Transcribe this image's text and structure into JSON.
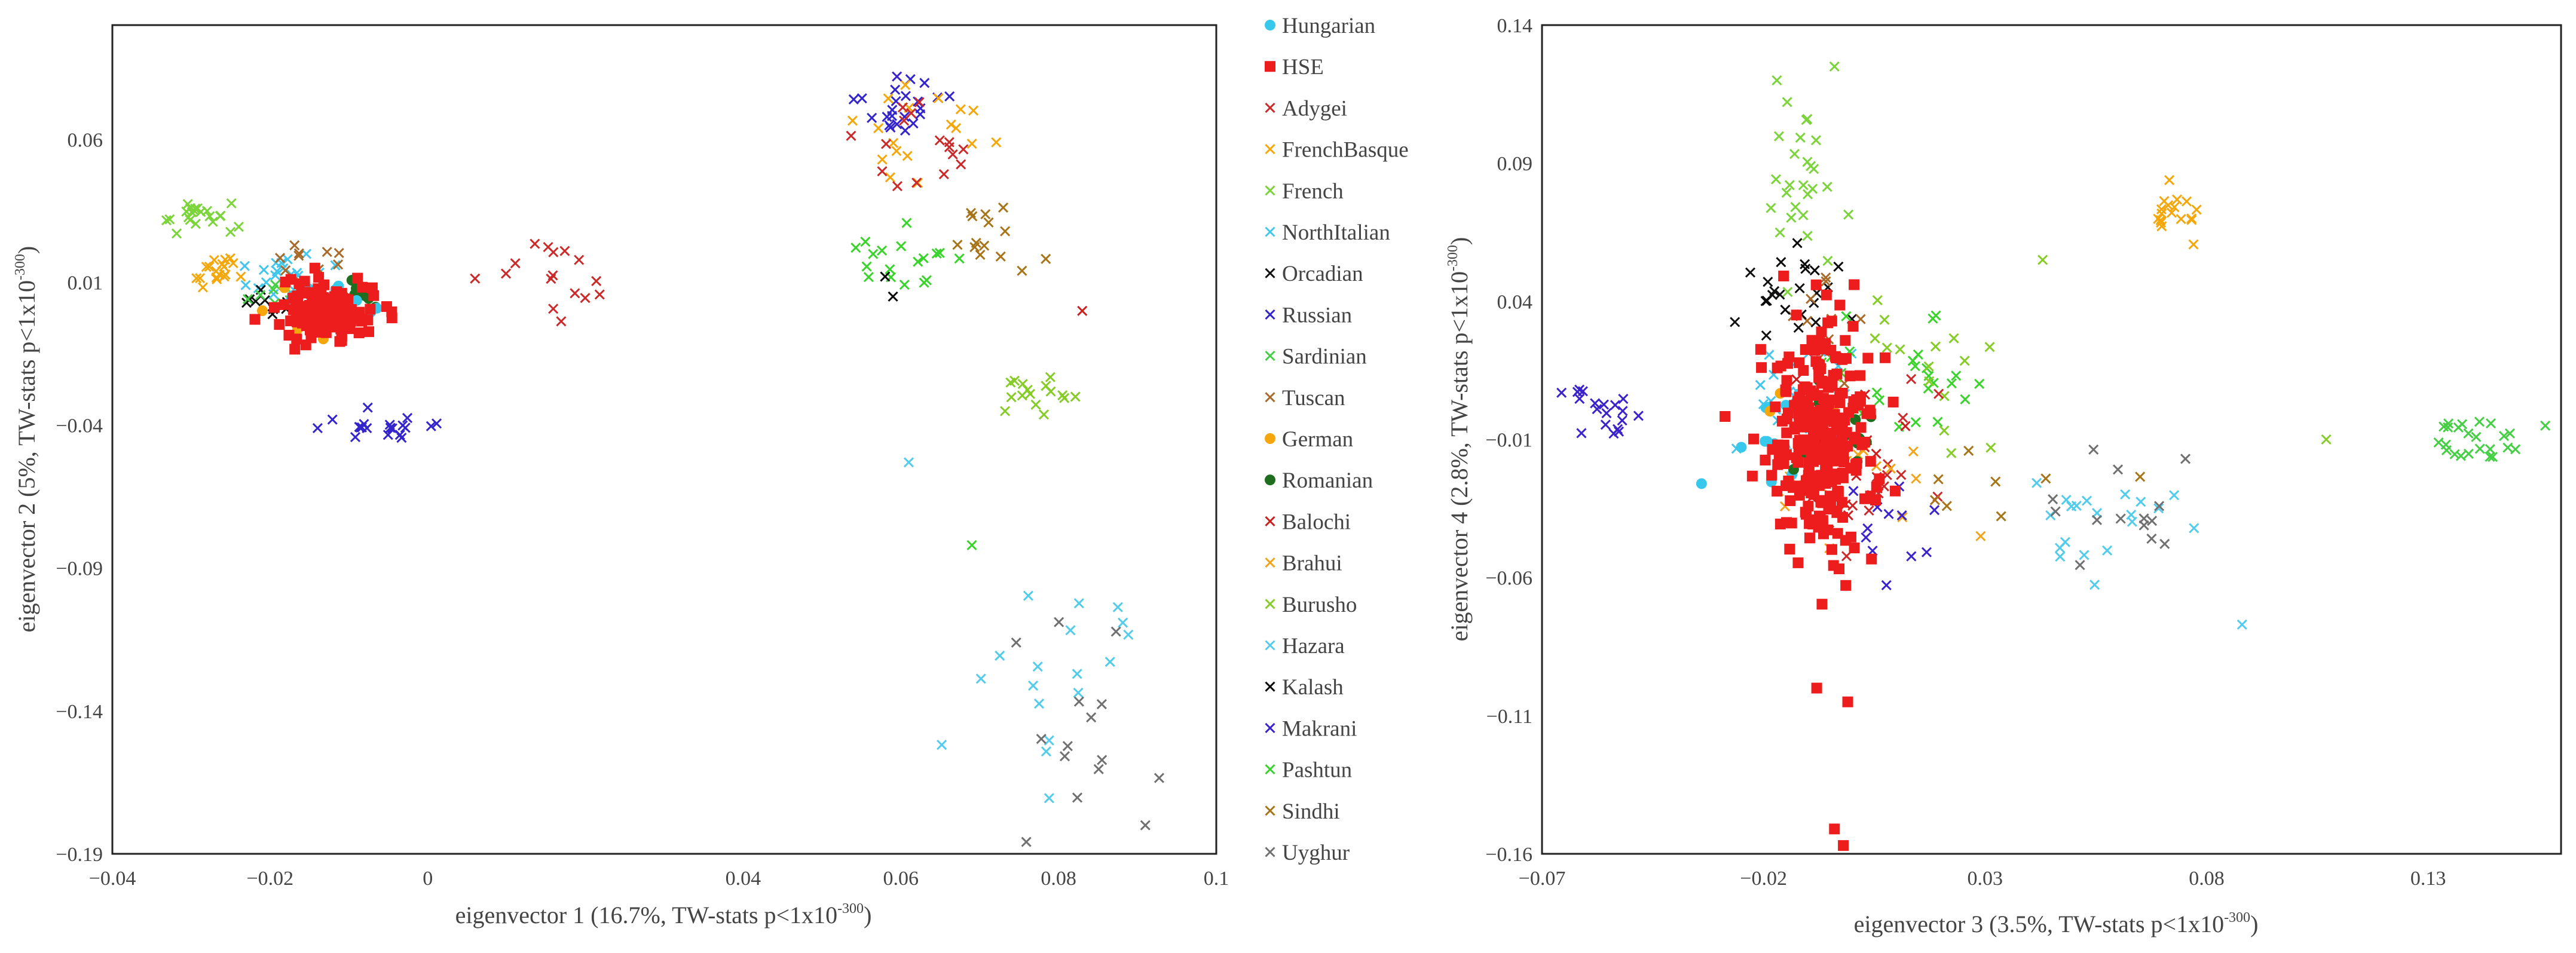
{
  "legend": {
    "items": [
      {
        "name": "Hungarian",
        "marker": "circle",
        "color": "#38c8ec"
      },
      {
        "name": "HSE",
        "marker": "square",
        "color": "#ee1d1d"
      },
      {
        "name": "Adygei",
        "marker": "x",
        "color": "#cc2a2a"
      },
      {
        "name": "FrenchBasque",
        "marker": "x",
        "color": "#f5a70a"
      },
      {
        "name": "French",
        "marker": "x",
        "color": "#7ad43a"
      },
      {
        "name": "NorthItalian",
        "marker": "x",
        "color": "#41c6ee"
      },
      {
        "name": "Orcadian",
        "marker": "x",
        "color": "#111111"
      },
      {
        "name": "Russian",
        "marker": "x",
        "color": "#3324cc"
      },
      {
        "name": "Sardinian",
        "marker": "x",
        "color": "#44cf44"
      },
      {
        "name": "Tuscan",
        "marker": "x",
        "color": "#a86a2a"
      },
      {
        "name": "German",
        "marker": "circle",
        "color": "#f5a60a"
      },
      {
        "name": "Romanian",
        "marker": "circle",
        "color": "#1f6e1f"
      },
      {
        "name": "Balochi",
        "marker": "x",
        "color": "#cc1e1e"
      },
      {
        "name": "Brahui",
        "marker": "x",
        "color": "#f2a41b"
      },
      {
        "name": "Burusho",
        "marker": "x",
        "color": "#86cc27"
      },
      {
        "name": "Hazara",
        "marker": "x",
        "color": "#52ccec"
      },
      {
        "name": "Kalash",
        "marker": "x",
        "color": "#0a0a0a"
      },
      {
        "name": "Makrani",
        "marker": "x",
        "color": "#3a22cc"
      },
      {
        "name": "Pashtun",
        "marker": "x",
        "color": "#39d42a"
      },
      {
        "name": "Sindhi",
        "marker": "x",
        "color": "#a87418"
      },
      {
        "name": "Uyghur",
        "marker": "x",
        "color": "#707070"
      }
    ]
  },
  "chart_data": [
    {
      "type": "scatter",
      "xlabel": "eigenvector 1 (16.7%, TW-stats p<1x10",
      "xlabel_sup": "-300",
      "xlabel_tail": ")",
      "ylabel": "eigenvector 2 (5%, TW-stats p<1x10",
      "ylabel_sup": "-300",
      "ylabel_tail": ")",
      "xlim": [
        -0.04,
        0.1
      ],
      "ylim": [
        -0.19,
        0.1
      ],
      "xticks": [
        -0.04,
        -0.02,
        0,
        0.04,
        0.06,
        0.08,
        0.1
      ],
      "xtick_labels": [
        "−0.04",
        "−0.02",
        "0",
        "0.04",
        "0.06",
        "0.08",
        "0.1"
      ],
      "yticks": [
        0.06,
        0.01,
        -0.04,
        -0.09,
        -0.14,
        -0.19
      ],
      "ytick_labels": [
        "0.06",
        "0.01",
        "−0.04",
        "−0.09",
        "−0.14",
        "−0.19"
      ],
      "clusters": [
        {
          "group": "French",
          "cx": -0.029,
          "cy": 0.0325,
          "sx": 0.0025,
          "sy": 0.0025,
          "n": 22,
          "seed": 101
        },
        {
          "group": "FrenchBasque",
          "cx": -0.027,
          "cy": 0.014,
          "sx": 0.0012,
          "sy": 0.003,
          "n": 18,
          "seed": 102
        },
        {
          "group": "NorthItalian",
          "cx": -0.018,
          "cy": 0.013,
          "sx": 0.003,
          "sy": 0.0035,
          "n": 22,
          "seed": 103
        },
        {
          "group": "Tuscan",
          "cx": -0.015,
          "cy": 0.018,
          "sx": 0.003,
          "sy": 0.003,
          "n": 10,
          "seed": 104
        },
        {
          "group": "Orcadian",
          "cx": -0.019,
          "cy": 0.003,
          "sx": 0.002,
          "sy": 0.003,
          "n": 14,
          "seed": 105
        },
        {
          "group": "Sardinian",
          "cx": -0.02,
          "cy": 0.006,
          "sx": 0.002,
          "sy": 0.002,
          "n": 8,
          "seed": 106
        },
        {
          "group": "HSE",
          "cx": -0.0135,
          "cy": 0.0,
          "sx": 0.003,
          "sy": 0.005,
          "n": 170,
          "seed": 107
        },
        {
          "group": "Romanian",
          "cx": -0.0115,
          "cy": 0.006,
          "sx": 0.0025,
          "sy": 0.002,
          "n": 14,
          "seed": 108
        },
        {
          "group": "Hungarian",
          "cx": -0.013,
          "cy": 0.004,
          "sx": 0.003,
          "sy": 0.003,
          "n": 14,
          "seed": 109
        },
        {
          "group": "German",
          "cx": -0.015,
          "cy": -0.004,
          "sx": 0.003,
          "sy": 0.009,
          "n": 10,
          "seed": 110
        },
        {
          "group": "Russian",
          "cx": -0.0055,
          "cy": -0.041,
          "sx": 0.0035,
          "sy": 0.0035,
          "n": 20,
          "seed": 111
        },
        {
          "group": "Adygei",
          "cx": 0.017,
          "cy": 0.013,
          "sx": 0.004,
          "sy": 0.008,
          "n": 16,
          "seed": 112
        },
        {
          "group": "Russian",
          "cx": 0.059,
          "cy": 0.069,
          "sx": 0.0025,
          "sy": 0.005,
          "n": 22,
          "seed": 113
        },
        {
          "group": "FrenchBasque",
          "cx": 0.063,
          "cy": 0.06,
          "sx": 0.005,
          "sy": 0.01,
          "n": 18,
          "seed": 114
        },
        {
          "group": "Adygei",
          "cx": 0.062,
          "cy": 0.057,
          "sx": 0.004,
          "sy": 0.01,
          "n": 16,
          "seed": 115
        },
        {
          "group": "Sindhi",
          "cx": 0.071,
          "cy": 0.028,
          "sx": 0.004,
          "sy": 0.005,
          "n": 14,
          "seed": 116
        },
        {
          "group": "Pashtun",
          "cx": 0.06,
          "cy": 0.018,
          "sx": 0.004,
          "sy": 0.006,
          "n": 18,
          "seed": 117
        },
        {
          "group": "Burusho",
          "cx": 0.075,
          "cy": -0.028,
          "sx": 0.0025,
          "sy": 0.005,
          "n": 16,
          "seed": 118
        },
        {
          "group": "Hazara",
          "cx": 0.081,
          "cy": -0.13,
          "sx": 0.005,
          "sy": 0.015,
          "n": 18,
          "seed": 119
        },
        {
          "group": "Uyghur",
          "cx": 0.08,
          "cy": -0.145,
          "sx": 0.005,
          "sy": 0.02,
          "n": 14,
          "seed": 120
        }
      ],
      "points": [
        {
          "group": "Kalash",
          "x": 0.058,
          "y": 0.012
        },
        {
          "group": "Kalash",
          "x": 0.059,
          "y": 0.005
        },
        {
          "group": "Balochi",
          "x": 0.083,
          "y": 0.0
        },
        {
          "group": "Hazara",
          "x": 0.061,
          "y": -0.053
        },
        {
          "group": "Pashtun",
          "x": 0.069,
          "y": -0.082
        },
        {
          "group": "Uyghur",
          "x": 0.091,
          "y": -0.18
        },
        {
          "group": "Makrani",
          "x": 0.0595,
          "y": 0.082
        }
      ]
    },
    {
      "type": "scatter",
      "xlabel": "eigenvector 3 (3.5%, TW-stats p<1x10",
      "xlabel_sup": "-300",
      "xlabel_tail": ")",
      "ylabel": "eigenvector 4 (2.8%, TW-stats p<1x10",
      "ylabel_sup": "-300",
      "ylabel_tail": ")",
      "xlim": [
        -0.07,
        0.16
      ],
      "ylim": [
        -0.16,
        0.14
      ],
      "xticks": [
        -0.07,
        -0.02,
        0.03,
        0.08,
        0.13
      ],
      "xtick_labels": [
        "−0.07",
        "−0.02",
        "0.03",
        "0.08",
        "0.13"
      ],
      "yticks": [
        0.14,
        0.09,
        0.04,
        -0.01,
        -0.06,
        -0.11,
        -0.16
      ],
      "ytick_labels": [
        "0.14",
        "0.09",
        "0.04",
        "−0.01",
        "−0.06",
        "−0.11",
        "−0.16"
      ],
      "clusters": [
        {
          "group": "Makrani",
          "cx": -0.058,
          "cy": 0.0,
          "sx": 0.005,
          "sy": 0.007,
          "n": 20,
          "seed": 201
        },
        {
          "group": "French",
          "cx": -0.011,
          "cy": 0.08,
          "sx": 0.0045,
          "sy": 0.016,
          "n": 26,
          "seed": 202
        },
        {
          "group": "FrenchBasque",
          "cx": 0.072,
          "cy": 0.072,
          "sx": 0.004,
          "sy": 0.005,
          "n": 18,
          "seed": 203
        },
        {
          "group": "Sardinian",
          "cx": 0.139,
          "cy": -0.01,
          "sx": 0.006,
          "sy": 0.004,
          "n": 24,
          "seed": 204
        },
        {
          "group": "Orcadian",
          "cx": -0.015,
          "cy": 0.04,
          "sx": 0.006,
          "sy": 0.008,
          "n": 14,
          "seed": 205
        },
        {
          "group": "Tuscan",
          "cx": -0.004,
          "cy": 0.035,
          "sx": 0.004,
          "sy": 0.01,
          "n": 10,
          "seed": 206
        },
        {
          "group": "NorthItalian",
          "cx": -0.013,
          "cy": 0.005,
          "sx": 0.006,
          "sy": 0.01,
          "n": 22,
          "seed": 207
        },
        {
          "group": "Pashtun",
          "cx": 0.01,
          "cy": 0.01,
          "sx": 0.01,
          "sy": 0.012,
          "n": 24,
          "seed": 208
        },
        {
          "group": "Burusho",
          "cx": 0.016,
          "cy": 0.015,
          "sx": 0.01,
          "sy": 0.012,
          "n": 16,
          "seed": 209
        },
        {
          "group": "Adygei",
          "cx": 0.005,
          "cy": -0.02,
          "sx": 0.007,
          "sy": 0.015,
          "n": 18,
          "seed": 210
        },
        {
          "group": "Balochi",
          "cx": 0.004,
          "cy": -0.015,
          "sx": 0.007,
          "sy": 0.018,
          "n": 16,
          "seed": 211
        },
        {
          "group": "Brahui",
          "cx": -0.002,
          "cy": -0.02,
          "sx": 0.008,
          "sy": 0.016,
          "n": 16,
          "seed": 212
        },
        {
          "group": "Makrani",
          "cx": 0.012,
          "cy": -0.04,
          "sx": 0.006,
          "sy": 0.012,
          "n": 12,
          "seed": 213
        },
        {
          "group": "HSE",
          "cx": -0.007,
          "cy": -0.01,
          "sx": 0.006,
          "sy": 0.022,
          "n": 280,
          "seed": 214
        },
        {
          "group": "Hungarian",
          "cx": -0.015,
          "cy": -0.008,
          "sx": 0.005,
          "sy": 0.008,
          "n": 14,
          "seed": 215
        },
        {
          "group": "Romanian",
          "cx": -0.005,
          "cy": -0.008,
          "sx": 0.006,
          "sy": 0.008,
          "n": 18,
          "seed": 216
        },
        {
          "group": "German",
          "cx": -0.013,
          "cy": 0.005,
          "sx": 0.006,
          "sy": 0.008,
          "n": 8,
          "seed": 217
        },
        {
          "group": "Hazara",
          "cx": 0.06,
          "cy": -0.04,
          "sx": 0.012,
          "sy": 0.012,
          "n": 20,
          "seed": 218
        },
        {
          "group": "Uyghur",
          "cx": 0.058,
          "cy": -0.035,
          "sx": 0.012,
          "sy": 0.008,
          "n": 14,
          "seed": 219
        },
        {
          "group": "Sindhi",
          "cx": 0.03,
          "cy": -0.03,
          "sx": 0.015,
          "sy": 0.01,
          "n": 8,
          "seed": 220
        },
        {
          "group": "Kalash",
          "cx": -0.012,
          "cy": 0.045,
          "sx": 0.006,
          "sy": 0.008,
          "n": 10,
          "seed": 221
        }
      ],
      "points": [
        {
          "group": "French",
          "x": -0.017,
          "y": 0.12
        },
        {
          "group": "French",
          "x": -0.004,
          "y": 0.125
        },
        {
          "group": "Burusho",
          "x": 0.043,
          "y": 0.055
        },
        {
          "group": "Burusho",
          "x": 0.107,
          "y": -0.01
        },
        {
          "group": "Hazara",
          "x": 0.088,
          "y": -0.077
        },
        {
          "group": "Hungarian",
          "x": -0.034,
          "y": -0.026
        },
        {
          "group": "Brahui",
          "x": 0.029,
          "y": -0.045
        },
        {
          "group": "HSE",
          "x": -0.004,
          "y": -0.151
        },
        {
          "group": "HSE",
          "x": -0.002,
          "y": -0.157
        },
        {
          "group": "HSE",
          "x": -0.001,
          "y": -0.105
        },
        {
          "group": "HSE",
          "x": -0.008,
          "y": -0.1
        }
      ]
    }
  ]
}
